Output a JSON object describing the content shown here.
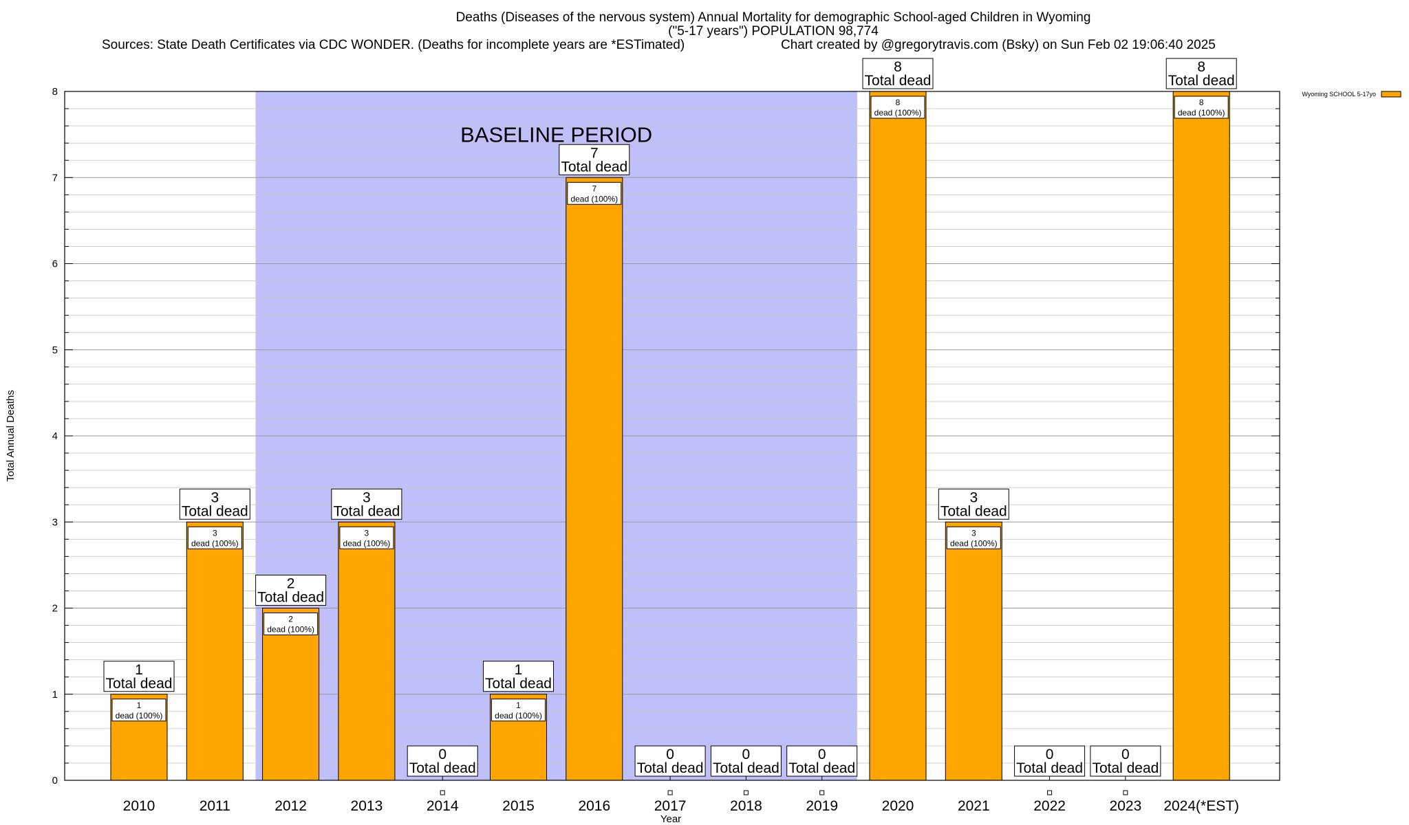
{
  "chart_data": {
    "type": "bar",
    "title_lines": [
      "Deaths (Diseases of the nervous system) Annual Mortality for demographic School-aged Children in Wyoming",
      "(\"5-17 years\") POPULATION 98,774"
    ],
    "sources": "Sources: State Death Certificates via CDC WONDER. (Deaths for incomplete years are *ESTimated)",
    "credit": "Chart created by @gregorytravis.com (Bsky) on Sun Feb 02 19:06:40 2025",
    "xlabel": "Year",
    "ylabel": "Total Annual Deaths",
    "ylim": [
      0,
      8
    ],
    "yticks": [
      0,
      1,
      2,
      3,
      4,
      5,
      6,
      7,
      8
    ],
    "grid": true,
    "categories": [
      "2010",
      "2011",
      "2012",
      "2013",
      "2014",
      "2015",
      "2016",
      "2017",
      "2018",
      "2019",
      "2020",
      "2021",
      "2022",
      "2023",
      "2024(*EST)"
    ],
    "series": [
      {
        "name": "Wyoming SCHOOL 5-17yo",
        "color": "#ffa500",
        "values": [
          1,
          3,
          2,
          3,
          0,
          1,
          7,
          0,
          0,
          0,
          8,
          3,
          0,
          0,
          8
        ]
      }
    ],
    "top_label_suffix": "Total dead",
    "inner_label_suffix": "dead (100%)",
    "baseline_period": {
      "label": "BASELINE PERIOD",
      "start_category": "2012",
      "end_category": "2019",
      "color": "#bfbffa"
    },
    "legend_position": "top-right"
  }
}
